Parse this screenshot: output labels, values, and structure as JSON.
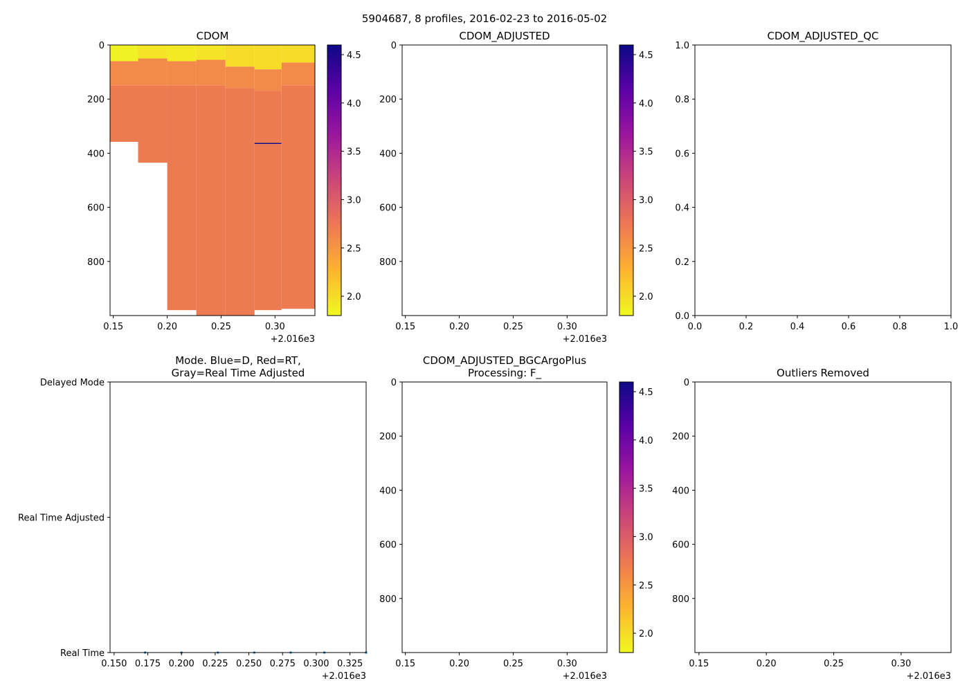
{
  "figure": {
    "suptitle": "5904687, 8 profiles, 2016-02-23 to 2016-05-02"
  },
  "colormap": {
    "name": "plasma_r",
    "stops": [
      "#f0f921",
      "#fdb42f",
      "#ed7953",
      "#cc4778",
      "#9c179e",
      "#5c01a6",
      "#0d0887"
    ]
  },
  "chart_data": [
    {
      "id": "cdom",
      "type": "heatmap",
      "title": "CDOM",
      "x_offset_label": "+2.016e3",
      "xlim": [
        0.147,
        0.337
      ],
      "xticks": [
        0.15,
        0.2,
        0.25,
        0.3
      ],
      "xtick_labels": [
        "0.15",
        "0.20",
        "0.25",
        "0.30"
      ],
      "ylim": [
        1000,
        0
      ],
      "yticks": [
        0,
        200,
        400,
        600,
        800
      ],
      "ytick_labels": [
        "0",
        "200",
        "400",
        "600",
        "800"
      ],
      "colorbar": {
        "vmin": 1.8,
        "vmax": 4.6,
        "ticks": [
          2.0,
          2.5,
          3.0,
          3.5,
          4.0,
          4.5
        ],
        "tick_labels": [
          "2.0",
          "2.5",
          "3.0",
          "3.5",
          "4.0",
          "4.5"
        ]
      },
      "profiles": [
        {
          "x0": 0.147,
          "x1": 0.173,
          "max_depth": 358,
          "layers": [
            {
              "top": 0,
              "bottom": 60,
              "value": 1.85
            },
            {
              "top": 60,
              "bottom": 150,
              "value": 2.6
            },
            {
              "top": 150,
              "bottom": 358,
              "value": 2.72
            }
          ]
        },
        {
          "x0": 0.173,
          "x1": 0.2,
          "max_depth": 435,
          "layers": [
            {
              "top": 0,
              "bottom": 50,
              "value": 1.95
            },
            {
              "top": 50,
              "bottom": 150,
              "value": 2.6
            },
            {
              "top": 150,
              "bottom": 435,
              "value": 2.72
            }
          ]
        },
        {
          "x0": 0.2,
          "x1": 0.227,
          "max_depth": 980,
          "layers": [
            {
              "top": 0,
              "bottom": 60,
              "value": 1.9
            },
            {
              "top": 60,
              "bottom": 150,
              "value": 2.6
            },
            {
              "top": 150,
              "bottom": 980,
              "value": 2.72
            }
          ]
        },
        {
          "x0": 0.227,
          "x1": 0.254,
          "max_depth": 1000,
          "layers": [
            {
              "top": 0,
              "bottom": 55,
              "value": 1.95
            },
            {
              "top": 55,
              "bottom": 150,
              "value": 2.6
            },
            {
              "top": 150,
              "bottom": 1000,
              "value": 2.72
            }
          ]
        },
        {
          "x0": 0.254,
          "x1": 0.281,
          "max_depth": 1000,
          "layers": [
            {
              "top": 0,
              "bottom": 80,
              "value": 2.0
            },
            {
              "top": 80,
              "bottom": 160,
              "value": 2.6
            },
            {
              "top": 160,
              "bottom": 1000,
              "value": 2.72
            }
          ]
        },
        {
          "x0": 0.281,
          "x1": 0.306,
          "max_depth": 980,
          "layers": [
            {
              "top": 0,
              "bottom": 90,
              "value": 2.0
            },
            {
              "top": 90,
              "bottom": 170,
              "value": 2.6
            },
            {
              "top": 170,
              "bottom": 362,
              "value": 2.72
            },
            {
              "top": 362,
              "bottom": 366,
              "value": 4.6
            },
            {
              "top": 366,
              "bottom": 980,
              "value": 2.72
            }
          ]
        },
        {
          "x0": 0.306,
          "x1": 0.337,
          "max_depth": 975,
          "layers": [
            {
              "top": 0,
              "bottom": 65,
              "value": 2.0
            },
            {
              "top": 65,
              "bottom": 150,
              "value": 2.6
            },
            {
              "top": 150,
              "bottom": 975,
              "value": 2.72
            }
          ]
        }
      ]
    },
    {
      "id": "cdom_adj",
      "type": "heatmap",
      "title": "CDOM_ADJUSTED",
      "x_offset_label": "+2.016e3",
      "xlim": [
        0.147,
        0.337
      ],
      "xticks": [
        0.15,
        0.2,
        0.25,
        0.3
      ],
      "xtick_labels": [
        "0.15",
        "0.20",
        "0.25",
        "0.30"
      ],
      "ylim": [
        1000,
        0
      ],
      "yticks": [
        0,
        200,
        400,
        600,
        800
      ],
      "ytick_labels": [
        "0",
        "200",
        "400",
        "600",
        "800"
      ],
      "colorbar": {
        "vmin": 1.8,
        "vmax": 4.6,
        "ticks": [
          2.0,
          2.5,
          3.0,
          3.5,
          4.0,
          4.5
        ],
        "tick_labels": [
          "2.0",
          "2.5",
          "3.0",
          "3.5",
          "4.0",
          "4.5"
        ]
      },
      "profiles": []
    },
    {
      "id": "cdom_adj_qc",
      "type": "scatter",
      "title": "CDOM_ADJUSTED_QC",
      "xlim": [
        0,
        1
      ],
      "xticks": [
        0.0,
        0.2,
        0.4,
        0.6,
        0.8,
        1.0
      ],
      "xtick_labels": [
        "0.0",
        "0.2",
        "0.4",
        "0.6",
        "0.8",
        "1.0"
      ],
      "ylim": [
        0,
        1
      ],
      "yticks": [
        0.0,
        0.2,
        0.4,
        0.6,
        0.8,
        1.0
      ],
      "ytick_labels": [
        "0.0",
        "0.2",
        "0.4",
        "0.6",
        "0.8",
        "1.0"
      ],
      "points": []
    },
    {
      "id": "mode",
      "type": "scatter",
      "title_lines": [
        "Mode. Blue=D, Red=RT,",
        "Gray=Real Time Adjusted"
      ],
      "x_offset_label": "+2.016e3",
      "xlim": [
        0.147,
        0.337
      ],
      "xticks": [
        0.15,
        0.175,
        0.2,
        0.225,
        0.25,
        0.275,
        0.3,
        0.325
      ],
      "xtick_labels": [
        "0.150",
        "0.175",
        "0.200",
        "0.225",
        "0.250",
        "0.275",
        "0.300",
        "0.325"
      ],
      "ylim": [
        0,
        2
      ],
      "yticks": [
        2,
        1,
        0
      ],
      "ytick_labels": [
        "Delayed Mode",
        "Real Time Adjusted",
        "Real Time"
      ],
      "color": "#1f77b4",
      "points": [
        {
          "x": 0.173,
          "y": 0
        },
        {
          "x": 0.2,
          "y": 0
        },
        {
          "x": 0.227,
          "y": 0
        },
        {
          "x": 0.254,
          "y": 0
        },
        {
          "x": 0.281,
          "y": 0
        },
        {
          "x": 0.306,
          "y": 0
        },
        {
          "x": 0.337,
          "y": 0
        }
      ]
    },
    {
      "id": "bgc_plus",
      "type": "heatmap",
      "title_lines": [
        "CDOM_ADJUSTED_BGCArgoPlus",
        "Processing: F_"
      ],
      "x_offset_label": "+2.016e3",
      "xlim": [
        0.147,
        0.337
      ],
      "xticks": [
        0.15,
        0.2,
        0.25,
        0.3
      ],
      "xtick_labels": [
        "0.15",
        "0.20",
        "0.25",
        "0.30"
      ],
      "ylim": [
        1000,
        0
      ],
      "yticks": [
        0,
        200,
        400,
        600,
        800
      ],
      "ytick_labels": [
        "0",
        "200",
        "400",
        "600",
        "800"
      ],
      "colorbar": {
        "vmin": 1.8,
        "vmax": 4.6,
        "ticks": [
          2.0,
          2.5,
          3.0,
          3.5,
          4.0,
          4.5
        ],
        "tick_labels": [
          "2.0",
          "2.5",
          "3.0",
          "3.5",
          "4.0",
          "4.5"
        ]
      },
      "profiles": []
    },
    {
      "id": "outliers",
      "type": "heatmap",
      "title": "Outliers Removed",
      "x_offset_label": "+2.016e3",
      "xlim": [
        0.147,
        0.337
      ],
      "xticks": [
        0.15,
        0.2,
        0.25,
        0.3
      ],
      "xtick_labels": [
        "0.15",
        "0.20",
        "0.25",
        "0.30"
      ],
      "ylim": [
        1000,
        0
      ],
      "yticks": [
        0,
        200,
        400,
        600,
        800
      ],
      "ytick_labels": [
        "0",
        "200",
        "400",
        "600",
        "800"
      ],
      "profiles": []
    }
  ]
}
